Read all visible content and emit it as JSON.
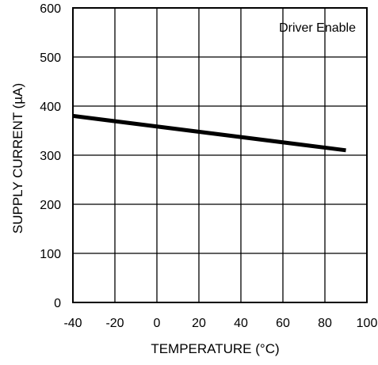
{
  "chart_data": {
    "type": "line",
    "title": "",
    "annotation": "Driver Enable",
    "xlabel": "TEMPERATURE (°C)",
    "ylabel": "SUPPLY CURRENT (µA)",
    "xlim": [
      -40,
      100
    ],
    "ylim": [
      0,
      600
    ],
    "xticks": [
      -40,
      -20,
      0,
      20,
      40,
      60,
      80,
      100
    ],
    "yticks": [
      0,
      100,
      200,
      300,
      400,
      500,
      600
    ],
    "xtick_labels": [
      "-40",
      "-20",
      "0",
      "20",
      "40",
      "60",
      "80",
      "100"
    ],
    "ytick_labels": [
      "0",
      "100",
      "200",
      "300",
      "400",
      "500",
      "600"
    ],
    "grid": true,
    "series": [
      {
        "x": [
          -40,
          90
        ],
        "y": [
          380,
          310
        ],
        "color": "#000000"
      }
    ]
  }
}
